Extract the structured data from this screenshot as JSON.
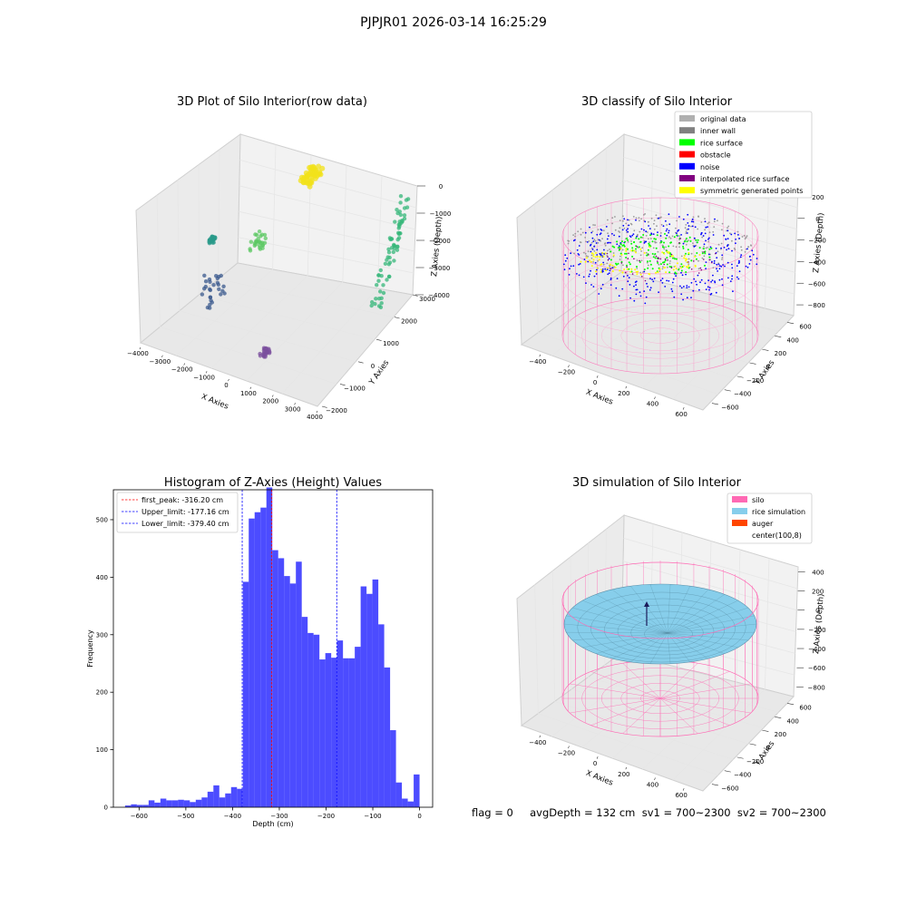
{
  "figure_title": "PJPJR01 2026-03-14 16:25:29",
  "status_line": "flag = 0     avgDepth = 132 cm  sv1 = 700~2300  sv2 = 700~2300",
  "chart_data": [
    {
      "type": "scatter3d",
      "title": "3D Plot of Silo Interior(row data)",
      "xlabel": "X Axies",
      "ylabel": "Y Axies",
      "zlabel": "Z Axies (Depth)",
      "x_ticks": [
        -4000,
        -3000,
        -2000,
        -1000,
        0,
        1000,
        2000,
        3000,
        4000
      ],
      "y_ticks": [
        -2000,
        -1000,
        0,
        1000,
        2000,
        3000
      ],
      "z_ticks": [
        -4000,
        -3000,
        -2000,
        -1000,
        0
      ],
      "xlim": [
        -4200,
        4300
      ],
      "ylim": [
        -2200,
        3500
      ],
      "zlim": [
        -4700,
        300
      ],
      "clusters": [
        {
          "name": "yellow-top",
          "x": [
            -200,
            400
          ],
          "y": [
            1800,
            2600
          ],
          "z": [
            -1100,
            -900
          ],
          "color": "#f2e11a"
        },
        {
          "name": "green-mid",
          "x": [
            -1100,
            -600
          ],
          "y": [
            300,
            700
          ],
          "z": [
            -2400,
            -2000
          ],
          "color": "#5cc863"
        },
        {
          "name": "teal-left",
          "x": [
            -3100,
            -2900
          ],
          "y": [
            500,
            700
          ],
          "z": [
            -2800,
            -2700
          ],
          "color": "#2a9a8a"
        },
        {
          "name": "blue-left",
          "x": [
            -2800,
            -2300
          ],
          "y": [
            -300,
            500
          ],
          "z": [
            -4300,
            -3300
          ],
          "color": "#3b5a8e"
        },
        {
          "name": "purple-low",
          "x": [
            500,
            800
          ],
          "y": [
            -1000,
            -700
          ],
          "z": [
            -4500,
            -4400
          ],
          "color": "#7b4f9e"
        },
        {
          "name": "right-wall",
          "x": [
            3300,
            3800
          ],
          "y": [
            1500,
            3200
          ],
          "z": [
            -4000,
            -1500
          ],
          "color": "#35b779"
        }
      ]
    },
    {
      "type": "scatter3d",
      "title": "3D classify of Silo Interior",
      "xlabel": "X Axies",
      "ylabel": "Y Axies",
      "zlabel": "Z Axies (Depth)",
      "x_ticks": [
        -400,
        -200,
        0,
        200,
        400,
        600
      ],
      "y_ticks": [
        -600,
        -400,
        -200,
        0,
        200,
        400,
        600
      ],
      "z_ticks": [
        -800,
        -600,
        -400,
        -200,
        0,
        200
      ],
      "legend": [
        {
          "label": "original data",
          "color": "#b0b0b0"
        },
        {
          "label": "inner wall",
          "color": "#808080"
        },
        {
          "label": "rice surface",
          "color": "#00ff00"
        },
        {
          "label": "obstacle",
          "color": "#ff0000"
        },
        {
          "label": "noise",
          "color": "#0000ff"
        },
        {
          "label": "interpolated rice surface",
          "color": "#800080"
        },
        {
          "label": "symmetric generated points",
          "color": "#ffff00"
        }
      ],
      "legend_loc": "upper right"
    },
    {
      "type": "bar",
      "title": "Histogram of Z-Axies (Height) Values",
      "xlabel": "Depth (cm)",
      "ylabel": "Frequency",
      "bin_start": -630,
      "bin_width": 12.6,
      "values": [
        3,
        5,
        4,
        4,
        12,
        8,
        15,
        12,
        12,
        13,
        12,
        9,
        13,
        17,
        27,
        38,
        17,
        24,
        35,
        32,
        392,
        502,
        513,
        521,
        556,
        447,
        433,
        402,
        389,
        427,
        331,
        303,
        300,
        257,
        268,
        260,
        290,
        259,
        259,
        279,
        384,
        371,
        396,
        318,
        243,
        134,
        43,
        15,
        10,
        57
      ],
      "xlim": [
        -655,
        28
      ],
      "ylim": [
        0,
        552
      ],
      "x_ticks": [
        -600,
        -500,
        -400,
        -300,
        -200,
        -100,
        0
      ],
      "y_ticks": [
        0,
        100,
        200,
        300,
        400,
        500
      ],
      "bar_color": "#0000ff",
      "vlines": [
        {
          "label": "first_peak: -316.20 cm",
          "x": -316.2,
          "color": "#ff0000"
        },
        {
          "label": "Upper_limit: -177.16 cm",
          "x": -177.16,
          "color": "#0000ff"
        },
        {
          "label": "Lower_limit: -379.40 cm",
          "x": -379.4,
          "color": "#0000ff"
        }
      ],
      "legend_loc": "upper left"
    },
    {
      "type": "surface3d",
      "title": "3D simulation of Silo Interior",
      "xlabel": "X Axies",
      "ylabel": "Y Axies",
      "zlabel": "Z Axies (Depth)",
      "x_ticks": [
        -400,
        -200,
        0,
        200,
        400,
        600
      ],
      "y_ticks": [
        -600,
        -400,
        -200,
        0,
        200,
        400,
        600
      ],
      "z_ticks": [
        -800,
        -600,
        -400,
        -200,
        0,
        200,
        400
      ],
      "legend": [
        {
          "label": "silo",
          "color": "#ff69b4"
        },
        {
          "label": "rice simulation",
          "color": "#87ceeb"
        },
        {
          "label": "auger",
          "color": "#ff4500"
        },
        {
          "label": "center(100,8)",
          "color": "#ffffff"
        }
      ],
      "legend_loc": "upper right"
    }
  ]
}
